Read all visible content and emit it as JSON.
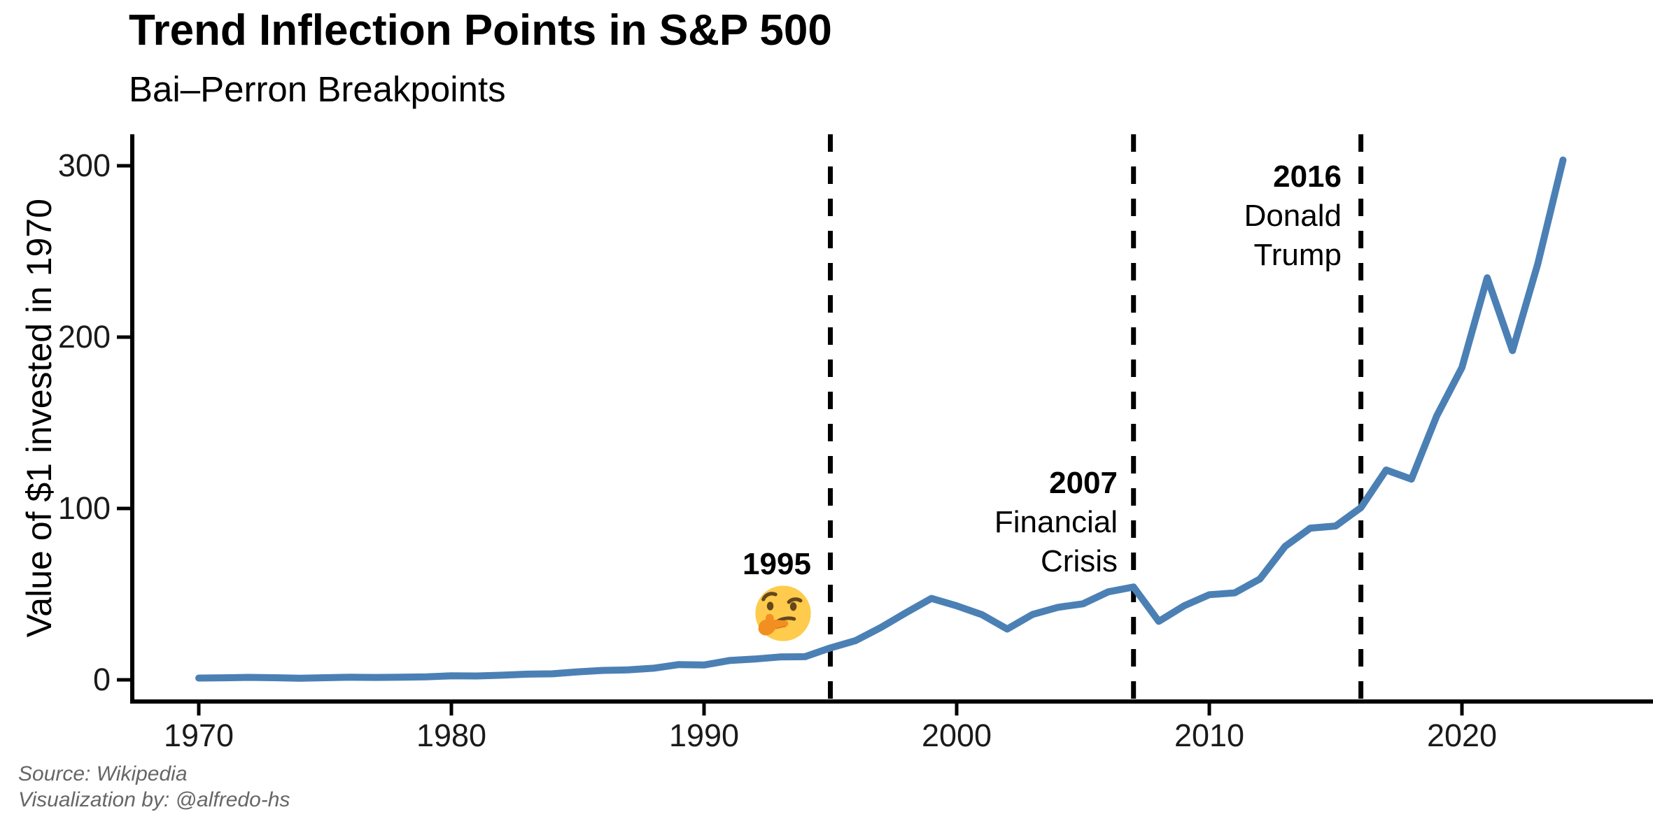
{
  "header": {
    "title": "Trend Inflection Points in S&P 500",
    "subtitle": "Bai–Perron Breakpoints"
  },
  "axes": {
    "y_label": "Value of $1 invested in 1970"
  },
  "annotations": [
    {
      "year": "1995",
      "lines": [],
      "emoji": "thinking-face"
    },
    {
      "year": "2007",
      "lines": [
        "Financial",
        "Crisis"
      ]
    },
    {
      "year": "2016",
      "lines": [
        "Donald",
        "Trump"
      ]
    }
  ],
  "caption": {
    "line1": "Source: Wikipedia",
    "line2": "Visualization by: @alfredo-hs"
  },
  "colors": {
    "line": "#4B80B5",
    "breakline": "#000000",
    "axis": "#000000",
    "caption_text": "#666666",
    "emoji_face": "#FFCB4C",
    "emoji_features": "#65471B",
    "emoji_hand": "#F19020"
  },
  "chart_data": {
    "type": "line",
    "title": "Trend Inflection Points in S&P 500",
    "subtitle": "Bai–Perron Breakpoints",
    "xlabel": "",
    "ylabel": "Value of $1 invested in 1970",
    "grid": false,
    "legend": false,
    "x_ticks": [
      1970,
      1980,
      1990,
      2000,
      2010,
      2020
    ],
    "y_ticks": [
      0,
      100,
      200,
      300
    ],
    "xlim": [
      1967.3,
      2026.5
    ],
    "ylim": [
      -12,
      318
    ],
    "breakpoint_years": [
      1995,
      2007,
      2016
    ],
    "x": [
      1970,
      1971,
      1972,
      1973,
      1974,
      1975,
      1976,
      1977,
      1978,
      1979,
      1980,
      1981,
      1982,
      1983,
      1984,
      1985,
      1986,
      1987,
      1988,
      1989,
      1990,
      1991,
      1992,
      1993,
      1994,
      1995,
      1996,
      1997,
      1998,
      1999,
      2000,
      2001,
      2002,
      2003,
      2004,
      2005,
      2006,
      2007,
      2008,
      2009,
      2010,
      2011,
      2012,
      2013,
      2014,
      2015,
      2016,
      2017,
      2018,
      2019,
      2020,
      2021,
      2022,
      2023,
      2024
    ],
    "values": [
      1.04,
      1.19,
      1.41,
      1.21,
      0.89,
      1.22,
      1.51,
      1.4,
      1.49,
      1.77,
      2.34,
      2.23,
      2.71,
      3.32,
      3.53,
      4.65,
      5.51,
      5.8,
      6.77,
      8.91,
      8.64,
      11.27,
      12.13,
      13.35,
      13.53,
      18.61,
      22.88,
      30.52,
      39.24,
      47.5,
      43.17,
      38.04,
      29.63,
      38.13,
      42.28,
      44.36,
      51.36,
      54.18,
      34.13,
      43.17,
      49.67,
      50.72,
      58.83,
      77.89,
      88.55,
      89.77,
      100.51,
      122.45,
      117.09,
      153.96,
      182.29,
      234.62,
      192.13,
      242.64,
      303.35
    ]
  }
}
